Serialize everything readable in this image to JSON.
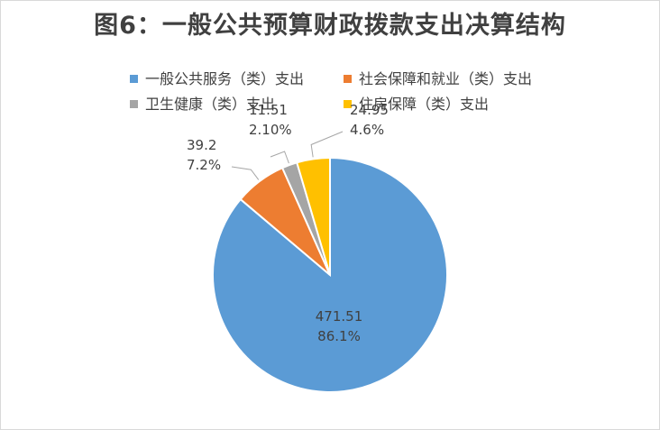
{
  "chart_data": {
    "type": "pie",
    "title": "图6：一般公共预算财政拨款支出决算结构",
    "legend_position": "top",
    "slices": [
      {
        "name": "一般公共服务（类）支出",
        "value": 471.51,
        "percent_label": "86.1%",
        "color": "#5B9BD5"
      },
      {
        "name": "社会保障和就业（类）支出",
        "value": 39.2,
        "percent_label": "7.2%",
        "color": "#ED7D31"
      },
      {
        "name": "卫生健康（类）支出",
        "value": 11.51,
        "percent_label": "2.10%",
        "color": "#A5A5A5"
      },
      {
        "name": "住房保障（类）支出",
        "value": 24.95,
        "percent_label": "4.6%",
        "color": "#FFC000"
      }
    ]
  }
}
